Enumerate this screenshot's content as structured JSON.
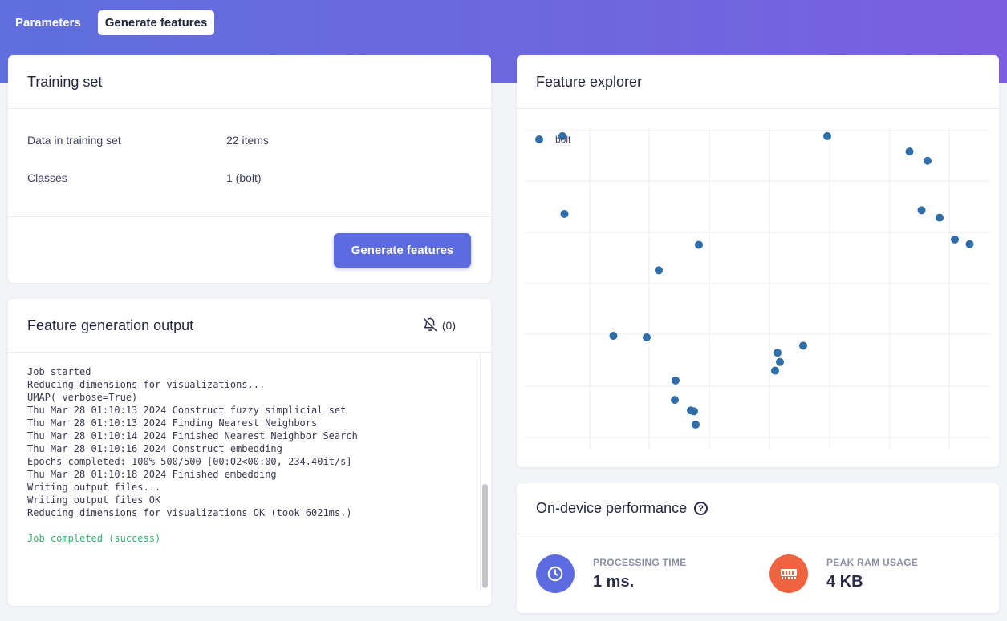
{
  "tabs": {
    "parameters": "Parameters",
    "generate": "Generate features"
  },
  "training": {
    "title": "Training set",
    "rows": [
      {
        "key": "Data in training set",
        "value": "22 items"
      },
      {
        "key": "Classes",
        "value": "1 (bolt)"
      }
    ],
    "button": "Generate features"
  },
  "output": {
    "title": "Feature generation output",
    "notify_count": "(0)",
    "lines": [
      "Job started",
      "Reducing dimensions for visualizations...",
      "UMAP( verbose=True)",
      "Thu Mar 28 01:10:13 2024 Construct fuzzy simplicial set",
      "Thu Mar 28 01:10:13 2024 Finding Nearest Neighbors",
      "Thu Mar 28 01:10:14 2024 Finished Nearest Neighbor Search",
      "Thu Mar 28 01:10:16 2024 Construct embedding",
      "Epochs completed: 100% 500/500 [00:02<00:00, 234.40it/s]",
      "Thu Mar 28 01:10:18 2024 Finished embedding",
      "Writing output files...",
      "Writing output files OK",
      "Reducing dimensions for visualizations OK (took 6021ms.)",
      "",
      "Job completed (success)"
    ]
  },
  "explorer": {
    "title": "Feature explorer",
    "chart_data": {
      "type": "scatter",
      "series": [
        {
          "name": "bolt",
          "color": "#2f6ea8",
          "points": [
            [
              0.09,
              0.982
            ],
            [
              0.095,
              0.73
            ],
            [
              0.43,
              0.63
            ],
            [
              0.33,
              0.547
            ],
            [
              0.217,
              0.335
            ],
            [
              0.3,
              0.33
            ],
            [
              0.372,
              0.19
            ],
            [
              0.37,
              0.127
            ],
            [
              0.41,
              0.093
            ],
            [
              0.418,
              0.09
            ],
            [
              0.422,
              0.047
            ],
            [
              0.626,
              0.28
            ],
            [
              0.632,
              0.25
            ],
            [
              0.62,
              0.222
            ],
            [
              0.69,
              0.303
            ],
            [
              0.75,
              0.982
            ],
            [
              0.955,
              0.932
            ],
            [
              1.0,
              0.902
            ],
            [
              0.985,
              0.742
            ],
            [
              1.03,
              0.718
            ],
            [
              1.068,
              0.647
            ],
            [
              1.105,
              0.632
            ]
          ]
        }
      ],
      "grid": true,
      "legend": "top-left"
    }
  },
  "perf": {
    "title": "On-device performance",
    "processing_label": "PROCESSING TIME",
    "processing_value": "1 ms.",
    "processing_color": "#5d6be0",
    "ram_label": "PEAK RAM USAGE",
    "ram_value": "4 KB",
    "ram_color": "#f06340"
  }
}
